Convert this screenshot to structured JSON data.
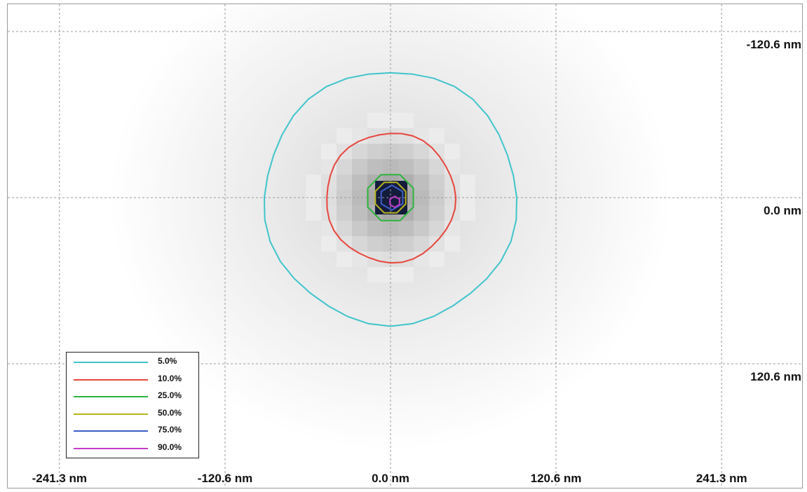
{
  "chart_data": {
    "type": "contour",
    "title": "",
    "xlabel": "",
    "ylabel": "",
    "x_ticks": [
      {
        "value": -241.3,
        "label": "-241.3 nm"
      },
      {
        "value": -120.6,
        "label": "-120.6 nm"
      },
      {
        "value": 0.0,
        "label": "0.0 nm"
      },
      {
        "value": 120.6,
        "label": "120.6 nm"
      },
      {
        "value": 241.3,
        "label": "241.3 nm"
      }
    ],
    "y_ticks": [
      {
        "value": -120.6,
        "label": "-120.6 nm"
      },
      {
        "value": 0.0,
        "label": "0.0 nm"
      },
      {
        "value": 120.6,
        "label": "120.6 nm"
      }
    ],
    "xlim": [
      -241.3,
      241.3
    ],
    "ylim": [
      -120.6,
      120.6
    ],
    "y_axis_inverted": true,
    "grid": true,
    "legend_position": "bottom-left",
    "contours": [
      {
        "level": "5.0%",
        "color": "#3fc4cc",
        "radius_nm": 92
      },
      {
        "level": "10.0%",
        "color": "#e8453c",
        "radius_nm": 47
      },
      {
        "level": "25.0%",
        "color": "#2db43c",
        "radius_nm": 18
      },
      {
        "level": "50.0%",
        "color": "#b8b61c",
        "radius_nm": 12
      },
      {
        "level": "75.0%",
        "color": "#3c5ec8",
        "radius_nm": 9
      },
      {
        "level": "90.0%",
        "color": "#c23cc8",
        "radius_nm": 4
      }
    ]
  }
}
